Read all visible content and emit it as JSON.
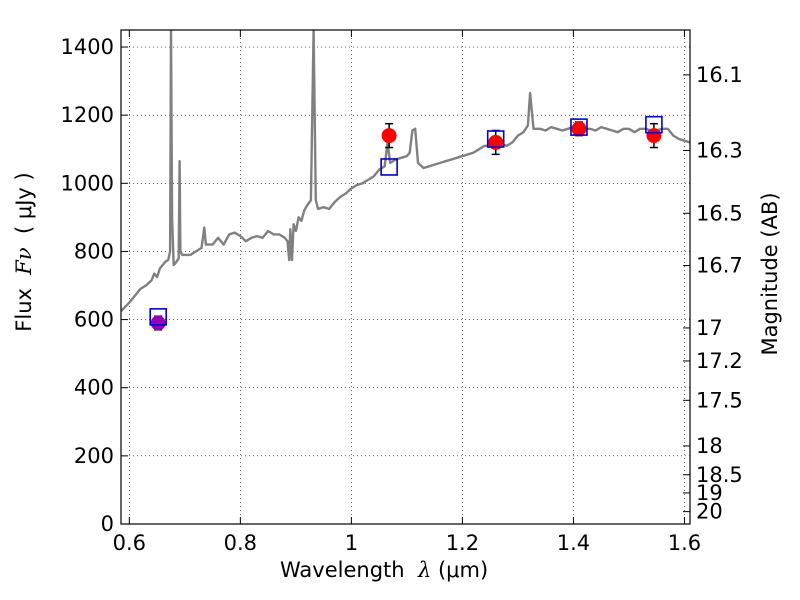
{
  "chart_data": {
    "type": "line",
    "xlabel_text": "Wavelength",
    "xlabel_symbol": "λ",
    "xlabel_unit": "(μm)",
    "ylabel_text": "Flux",
    "ylabel_symbol": "Fν",
    "ylabel_unit": "( μJy )",
    "y2label": "Magnitude (AB)",
    "xlim": [
      0.585,
      1.61
    ],
    "ylim": [
      0,
      1450
    ],
    "grid": true,
    "xticks": [
      0.6,
      0.8,
      1.0,
      1.2,
      1.4,
      1.6
    ],
    "xtick_labels": [
      "0.6",
      "0.8",
      "1",
      "1.2",
      "1.4",
      "1.6"
    ],
    "yticks": [
      0,
      200,
      400,
      600,
      800,
      1000,
      1200,
      1400
    ],
    "ytick_labels": [
      "0",
      "200",
      "400",
      "600",
      "800",
      "1000",
      "1200",
      "1400"
    ],
    "y2ticks": [
      {
        "label": "16.1",
        "mag": 16.1
      },
      {
        "label": "16.3",
        "mag": 16.3
      },
      {
        "label": "16.5",
        "mag": 16.5
      },
      {
        "label": "16.7",
        "mag": 16.7
      },
      {
        "label": "17",
        "mag": 17.0
      },
      {
        "label": "17.2",
        "mag": 17.2
      },
      {
        "label": "17.5",
        "mag": 17.5
      },
      {
        "label": "18",
        "mag": 18.0
      },
      {
        "label": "18.5",
        "mag": 18.5
      },
      {
        "label": "19",
        "mag": 19.0
      },
      {
        "label": "20",
        "mag": 20.0
      }
    ],
    "spectrum_color": "#808080",
    "spectrum": [
      [
        0.585,
        625
      ],
      [
        0.6,
        650
      ],
      [
        0.61,
        670
      ],
      [
        0.62,
        690
      ],
      [
        0.63,
        700
      ],
      [
        0.64,
        715
      ],
      [
        0.645,
        735
      ],
      [
        0.65,
        725
      ],
      [
        0.655,
        750
      ],
      [
        0.66,
        760
      ],
      [
        0.665,
        770
      ],
      [
        0.67,
        775
      ],
      [
        0.6735,
        800
      ],
      [
        0.675,
        1450
      ],
      [
        0.677,
        900
      ],
      [
        0.68,
        760
      ],
      [
        0.685,
        770
      ],
      [
        0.689,
        780
      ],
      [
        0.6905,
        1065
      ],
      [
        0.692,
        800
      ],
      [
        0.695,
        790
      ],
      [
        0.7,
        790
      ],
      [
        0.71,
        790
      ],
      [
        0.72,
        800
      ],
      [
        0.73,
        810
      ],
      [
        0.735,
        870
      ],
      [
        0.738,
        820
      ],
      [
        0.74,
        820
      ],
      [
        0.75,
        820
      ],
      [
        0.76,
        840
      ],
      [
        0.77,
        820
      ],
      [
        0.78,
        850
      ],
      [
        0.79,
        855
      ],
      [
        0.8,
        845
      ],
      [
        0.81,
        830
      ],
      [
        0.82,
        840
      ],
      [
        0.83,
        845
      ],
      [
        0.84,
        840
      ],
      [
        0.85,
        860
      ],
      [
        0.86,
        850
      ],
      [
        0.87,
        850
      ],
      [
        0.88,
        840
      ],
      [
        0.885,
        830
      ],
      [
        0.888,
        775
      ],
      [
        0.89,
        865
      ],
      [
        0.893,
        775
      ],
      [
        0.896,
        880
      ],
      [
        0.9,
        860
      ],
      [
        0.905,
        900
      ],
      [
        0.91,
        890
      ],
      [
        0.915,
        920
      ],
      [
        0.92,
        935
      ],
      [
        0.927,
        950
      ],
      [
        0.932,
        1450
      ],
      [
        0.936,
        950
      ],
      [
        0.94,
        925
      ],
      [
        0.95,
        930
      ],
      [
        0.96,
        925
      ],
      [
        0.97,
        945
      ],
      [
        0.98,
        960
      ],
      [
        0.99,
        970
      ],
      [
        1.0,
        985
      ],
      [
        1.01,
        995
      ],
      [
        1.02,
        1000
      ],
      [
        1.03,
        1010
      ],
      [
        1.04,
        1020
      ],
      [
        1.05,
        1040
      ],
      [
        1.06,
        1050
      ],
      [
        1.065,
        1120
      ],
      [
        1.07,
        1060
      ],
      [
        1.08,
        1070
      ],
      [
        1.09,
        1075
      ],
      [
        1.1,
        1080
      ],
      [
        1.105,
        1090
      ],
      [
        1.11,
        1155
      ],
      [
        1.115,
        1160
      ],
      [
        1.12,
        1060
      ],
      [
        1.13,
        1045
      ],
      [
        1.14,
        1050
      ],
      [
        1.15,
        1055
      ],
      [
        1.16,
        1060
      ],
      [
        1.17,
        1065
      ],
      [
        1.18,
        1070
      ],
      [
        1.19,
        1075
      ],
      [
        1.2,
        1080
      ],
      [
        1.21,
        1085
      ],
      [
        1.22,
        1090
      ],
      [
        1.23,
        1100
      ],
      [
        1.24,
        1110
      ],
      [
        1.25,
        1110
      ],
      [
        1.26,
        1115
      ],
      [
        1.27,
        1115
      ],
      [
        1.28,
        1110
      ],
      [
        1.29,
        1120
      ],
      [
        1.3,
        1140
      ],
      [
        1.31,
        1150
      ],
      [
        1.318,
        1170
      ],
      [
        1.322,
        1265
      ],
      [
        1.328,
        1160
      ],
      [
        1.34,
        1160
      ],
      [
        1.35,
        1155
      ],
      [
        1.36,
        1165
      ],
      [
        1.37,
        1160
      ],
      [
        1.38,
        1155
      ],
      [
        1.39,
        1160
      ],
      [
        1.4,
        1165
      ],
      [
        1.41,
        1170
      ],
      [
        1.42,
        1160
      ],
      [
        1.43,
        1160
      ],
      [
        1.44,
        1155
      ],
      [
        1.45,
        1165
      ],
      [
        1.46,
        1160
      ],
      [
        1.47,
        1155
      ],
      [
        1.48,
        1150
      ],
      [
        1.49,
        1160
      ],
      [
        1.5,
        1160
      ],
      [
        1.51,
        1150
      ],
      [
        1.52,
        1160
      ],
      [
        1.53,
        1160
      ],
      [
        1.54,
        1155
      ],
      [
        1.55,
        1155
      ],
      [
        1.56,
        1160
      ],
      [
        1.57,
        1160
      ],
      [
        1.58,
        1140
      ],
      [
        1.59,
        1130
      ],
      [
        1.6,
        1125
      ],
      [
        1.61,
        1120
      ]
    ],
    "observed_points": [
      {
        "x": 0.652,
        "y": 590,
        "yerr": 20,
        "color": "#9400b3"
      },
      {
        "x": 1.068,
        "y": 1140,
        "yerr": 35,
        "color": "#ff0000"
      },
      {
        "x": 1.26,
        "y": 1120,
        "yerr": 35,
        "color": "#ff0000"
      },
      {
        "x": 1.41,
        "y": 1160,
        "yerr": 20,
        "color": "#ff0000"
      },
      {
        "x": 1.545,
        "y": 1140,
        "yerr": 35,
        "color": "#ff0000"
      }
    ],
    "model_points": [
      {
        "x": 0.652,
        "y": 608
      },
      {
        "x": 1.068,
        "y": 1048
      },
      {
        "x": 1.26,
        "y": 1130
      },
      {
        "x": 1.41,
        "y": 1165
      },
      {
        "x": 1.545,
        "y": 1172
      }
    ],
    "model_color": "#0000dd"
  }
}
